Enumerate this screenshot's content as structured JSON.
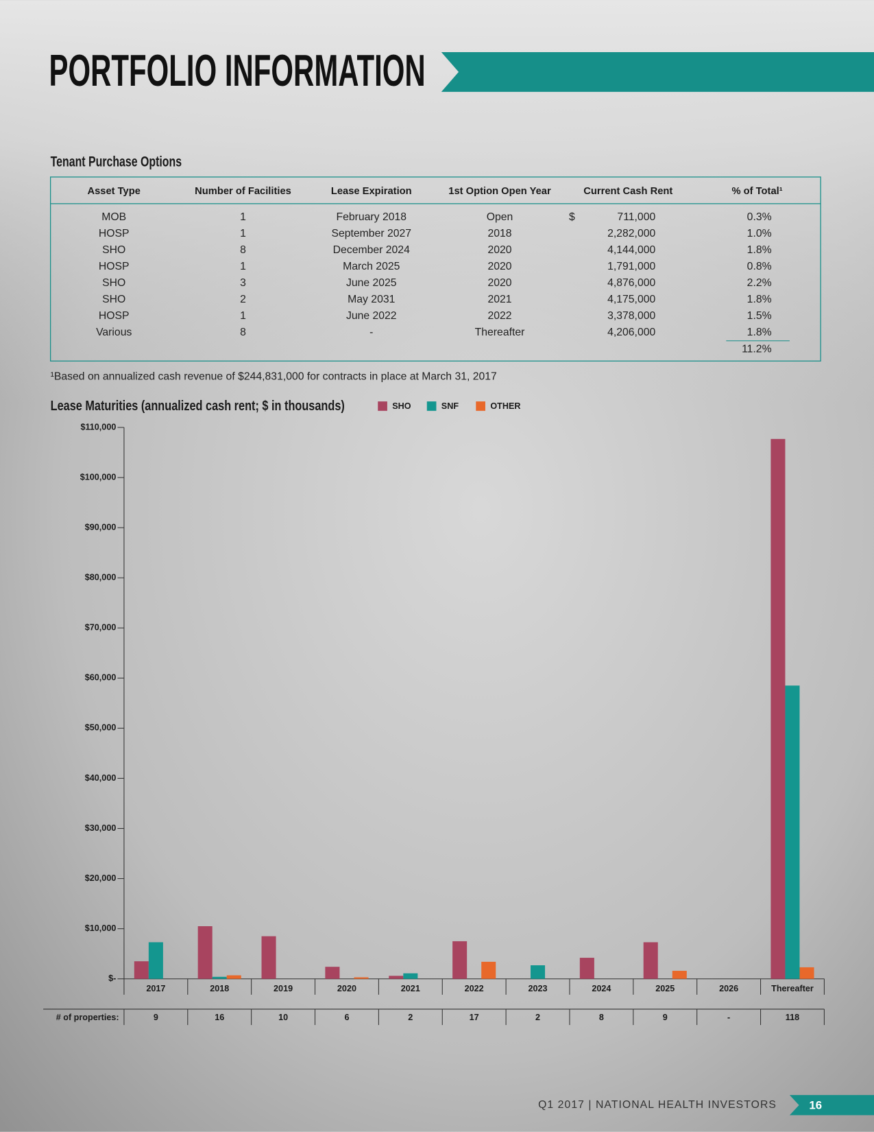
{
  "header": {
    "title": "PORTFOLIO INFORMATION"
  },
  "table": {
    "title": "Tenant Purchase Options",
    "columns": [
      "Asset Type",
      "Number of Facilities",
      "Lease Expiration",
      "1st Option Open Year",
      "Current Cash Rent",
      "% of Total¹"
    ],
    "currency_symbol": "$",
    "rows": [
      [
        "MOB",
        "1",
        "February 2018",
        "Open",
        "711,000",
        "0.3%"
      ],
      [
        "HOSP",
        "1",
        "September 2027",
        "2018",
        "2,282,000",
        "1.0%"
      ],
      [
        "SHO",
        "8",
        "December 2024",
        "2020",
        "4,144,000",
        "1.8%"
      ],
      [
        "HOSP",
        "1",
        "March 2025",
        "2020",
        "1,791,000",
        "0.8%"
      ],
      [
        "SHO",
        "3",
        "June 2025",
        "2020",
        "4,876,000",
        "2.2%"
      ],
      [
        "SHO",
        "2",
        "May 2031",
        "2021",
        "4,175,000",
        "1.8%"
      ],
      [
        "HOSP",
        "1",
        "June 2022",
        "2022",
        "3,378,000",
        "1.5%"
      ],
      [
        "Various",
        "8",
        "-",
        "Thereafter",
        "4,206,000",
        "1.8%"
      ]
    ],
    "total": "11.2%"
  },
  "footnote": "¹Based on annualized cash revenue of $244,831,000 for contracts in place at March 31, 2017",
  "chart_data": {
    "type": "bar",
    "title": "Lease Maturities (annualized cash rent; $ in thousands)",
    "categories": [
      "2017",
      "2018",
      "2019",
      "2020",
      "2021",
      "2022",
      "2023",
      "2024",
      "2025",
      "2026",
      "Thereafter"
    ],
    "series": [
      {
        "name": "SHO",
        "color": "#a8445f",
        "values": [
          3500,
          10500,
          8500,
          2400,
          600,
          7500,
          0,
          4200,
          7300,
          0,
          107700
        ]
      },
      {
        "name": "SNF",
        "color": "#14968f",
        "values": [
          7300,
          400,
          0,
          0,
          1100,
          0,
          2700,
          0,
          0,
          0,
          58500
        ]
      },
      {
        "name": "OTHER",
        "color": "#e8682a",
        "values": [
          0,
          700,
          0,
          300,
          0,
          3400,
          0,
          0,
          1600,
          0,
          2300
        ]
      }
    ],
    "ylim": [
      0,
      110000
    ],
    "yticks": [
      {
        "value": 0,
        "label": "$-"
      },
      {
        "value": 10000,
        "label": "$10,000"
      },
      {
        "value": 20000,
        "label": "$20,000"
      },
      {
        "value": 30000,
        "label": "$30,000"
      },
      {
        "value": 40000,
        "label": "$40,000"
      },
      {
        "value": 50000,
        "label": "$50,000"
      },
      {
        "value": 60000,
        "label": "$60,000"
      },
      {
        "value": 70000,
        "label": "$70,000"
      },
      {
        "value": 80000,
        "label": "$80,000"
      },
      {
        "value": 90000,
        "label": "$90,000"
      },
      {
        "value": 100000,
        "label": "$100,000"
      },
      {
        "value": 110000,
        "label": "$110,000"
      }
    ],
    "properties": {
      "label": "# of properties:",
      "values": [
        9,
        16,
        10,
        6,
        2,
        17,
        2,
        8,
        9,
        "-",
        118
      ]
    }
  },
  "footer": {
    "text": "Q1 2017 | NATIONAL HEALTH INVESTORS",
    "page": "16"
  }
}
